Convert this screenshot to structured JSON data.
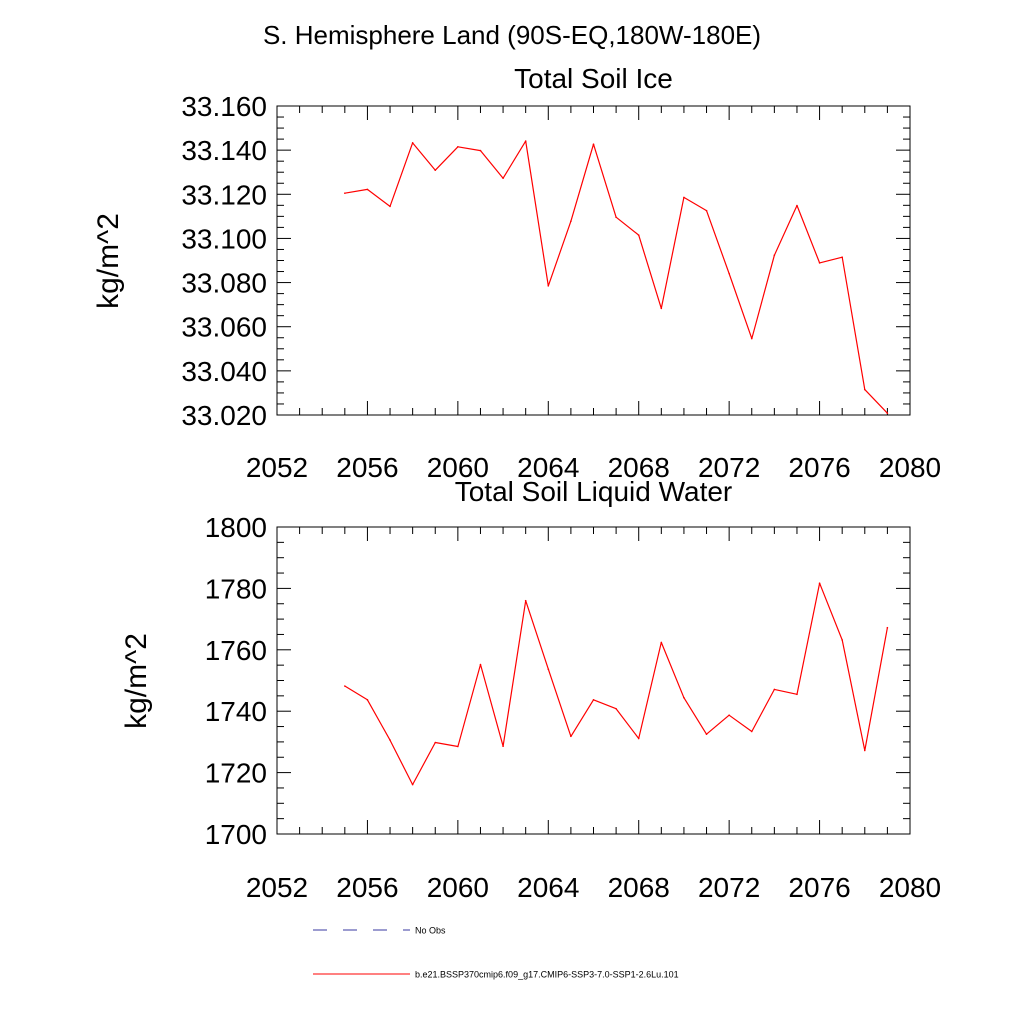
{
  "page_title": "S. Hemisphere Land (90S-EQ,180W-180E)",
  "legend": {
    "entries": [
      {
        "label": "No Obs",
        "color": "#3a3aa0",
        "dash": true
      },
      {
        "label": "b.e21.BSSP370cmip6.f09_g17.CMIP6-SSP3-7.0-SSP1-2.6Lu.101",
        "color": "#ff0000",
        "dash": false
      }
    ]
  },
  "chart_data": [
    {
      "type": "line",
      "title": "Total Soil Ice",
      "ylabel": "kg/m^2",
      "xlabel": "",
      "xlim": [
        2052,
        2080
      ],
      "ylim": [
        33.02,
        33.16
      ],
      "x_ticks": [
        "2052",
        "2056",
        "2060",
        "2064",
        "2068",
        "2072",
        "2076",
        "2080"
      ],
      "y_ticks": [
        "33.020",
        "33.040",
        "33.060",
        "33.080",
        "33.100",
        "33.120",
        "33.140",
        "33.160"
      ],
      "series": [
        {
          "name": "b.e21.BSSP370cmip6.f09_g17.CMIP6-SSP3-7.0-SSP1-2.6Lu.101",
          "color": "#ff0000",
          "x": [
            2055,
            2056,
            2057,
            2058,
            2059,
            2060,
            2061,
            2062,
            2063,
            2064,
            2065,
            2066,
            2067,
            2068,
            2069,
            2070,
            2071,
            2072,
            2073,
            2074,
            2075,
            2076,
            2077,
            2078,
            2079
          ],
          "values": [
            33.1205,
            33.1222,
            33.1145,
            33.1433,
            33.1309,
            33.1415,
            33.1398,
            33.1273,
            33.1441,
            33.0785,
            33.1078,
            33.1427,
            33.1096,
            33.1015,
            33.0683,
            33.1186,
            33.1126,
            33.0841,
            33.0546,
            33.0924,
            33.1149,
            33.0889,
            33.0915,
            33.0315,
            33.0208
          ]
        }
      ]
    },
    {
      "type": "line",
      "title": "Total Soil Liquid Water",
      "ylabel": "kg/m^2",
      "xlabel": "",
      "xlim": [
        2052,
        2080
      ],
      "ylim": [
        1700,
        1800
      ],
      "x_ticks": [
        "2052",
        "2056",
        "2060",
        "2064",
        "2068",
        "2072",
        "2076",
        "2080"
      ],
      "y_ticks": [
        "1700",
        "1720",
        "1740",
        "1760",
        "1780",
        "1800"
      ],
      "series": [
        {
          "name": "b.e21.BSSP370cmip6.f09_g17.CMIP6-SSP3-7.0-SSP1-2.6Lu.101",
          "color": "#ff0000",
          "x": [
            2055,
            2056,
            2057,
            2058,
            2059,
            2060,
            2061,
            2062,
            2063,
            2064,
            2065,
            2066,
            2067,
            2068,
            2069,
            2070,
            2071,
            2072,
            2073,
            2074,
            2075,
            2076,
            2077,
            2078,
            2079
          ],
          "values": [
            1748.2,
            1743.7,
            1730.6,
            1716.1,
            1729.8,
            1728.5,
            1755.2,
            1728.6,
            1776.0,
            1753.7,
            1731.8,
            1743.7,
            1740.8,
            1731.1,
            1762.4,
            1744.4,
            1732.5,
            1738.7,
            1733.4,
            1747.1,
            1745.5,
            1781.7,
            1763.2,
            1727.2,
            1767.2
          ]
        }
      ]
    }
  ]
}
